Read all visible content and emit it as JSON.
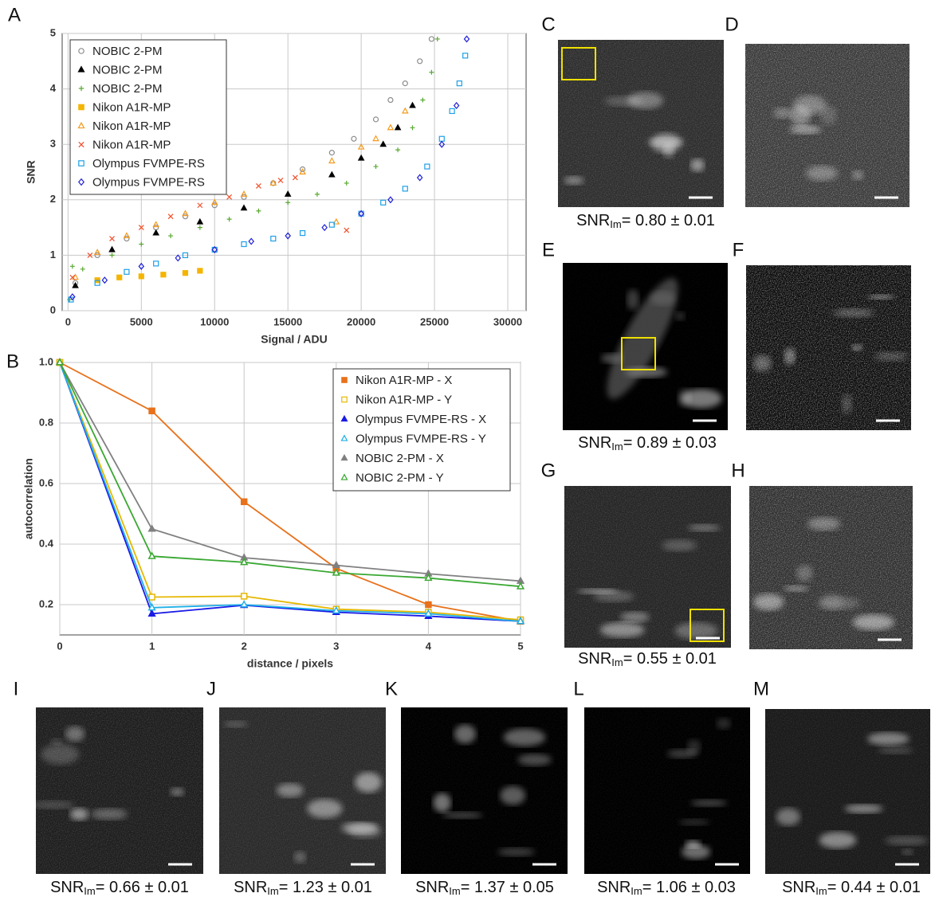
{
  "chart_data": [
    {
      "type": "scatter",
      "panel_label": "A",
      "xlabel": "Signal / ADU",
      "ylabel": "SNR",
      "xlim": [
        -400,
        31250
      ],
      "ylim": [
        0,
        5
      ],
      "xticks": [
        0,
        5000,
        10000,
        15000,
        20000,
        25000,
        30000
      ],
      "yticks": [
        0,
        1,
        2,
        3,
        4,
        5
      ],
      "grid": true,
      "legend": "upper left",
      "series": [
        {
          "name": "NOBIC 2-PM",
          "color": "#8c8c8c",
          "marker": "circle-open",
          "x": [
            500,
            2000,
            4000,
            6000,
            8000,
            10000,
            12000,
            14000,
            16000,
            18000,
            19500,
            21000,
            22000,
            23000,
            24000,
            24800
          ],
          "values": [
            0.5,
            1.0,
            1.3,
            1.5,
            1.7,
            1.9,
            2.05,
            2.3,
            2.55,
            2.85,
            3.1,
            3.45,
            3.8,
            4.1,
            4.5,
            4.9
          ]
        },
        {
          "name": "NOBIC 2-PM",
          "color": "#000000",
          "marker": "triangle-filled",
          "x": [
            500,
            3000,
            6000,
            9000,
            12000,
            15000,
            18000,
            20000,
            21500,
            22500,
            23500
          ],
          "values": [
            0.45,
            1.1,
            1.4,
            1.6,
            1.85,
            2.1,
            2.45,
            2.75,
            3.0,
            3.3,
            3.7
          ]
        },
        {
          "name": "NOBIC 2-PM",
          "color": "#5aa832",
          "marker": "plus",
          "x": [
            100,
            300,
            1000,
            3000,
            5000,
            7000,
            9000,
            11000,
            13000,
            15000,
            17000,
            19000,
            21000,
            22500,
            23500,
            24200,
            24800,
            25200
          ],
          "values": [
            0.2,
            0.8,
            0.75,
            1.0,
            1.2,
            1.35,
            1.5,
            1.65,
            1.8,
            1.95,
            2.1,
            2.3,
            2.6,
            2.9,
            3.3,
            3.8,
            4.3,
            4.9
          ]
        },
        {
          "name": "Nikon A1R-MP",
          "color": "#f5b400",
          "marker": "square-filled",
          "x": [
            2000,
            3500,
            5000,
            6500,
            8000,
            9000
          ],
          "values": [
            0.55,
            0.6,
            0.62,
            0.65,
            0.68,
            0.72
          ]
        },
        {
          "name": "Nikon A1R-MP",
          "color": "#f59a1c",
          "marker": "triangle-open",
          "x": [
            500,
            2000,
            4000,
            6000,
            8000,
            10000,
            12000,
            14000,
            16000,
            18000,
            18300,
            20000,
            21000,
            22000,
            23000
          ],
          "values": [
            0.6,
            1.05,
            1.35,
            1.55,
            1.75,
            1.95,
            2.1,
            2.3,
            2.5,
            2.7,
            1.6,
            2.95,
            3.1,
            3.3,
            3.6
          ]
        },
        {
          "name": "Nikon A1R-MP",
          "color": "#f0502a",
          "marker": "cross",
          "x": [
            300,
            1500,
            3000,
            5000,
            7000,
            9000,
            11000,
            13000,
            14500,
            15500,
            19000
          ],
          "values": [
            0.6,
            1.0,
            1.3,
            1.5,
            1.7,
            1.9,
            2.05,
            2.25,
            2.35,
            2.4,
            1.45
          ]
        },
        {
          "name": "Olympus FVMPE-RS",
          "color": "#1ea0e6",
          "marker": "square-open",
          "x": [
            200,
            2000,
            4000,
            6000,
            8000,
            10000,
            12000,
            14000,
            16000,
            18000,
            20000,
            21500,
            23000,
            24500,
            25500,
            26200,
            26700,
            27100
          ],
          "values": [
            0.2,
            0.5,
            0.7,
            0.85,
            1.0,
            1.1,
            1.2,
            1.3,
            1.4,
            1.55,
            1.75,
            1.95,
            2.2,
            2.6,
            3.1,
            3.6,
            4.1,
            4.6
          ]
        },
        {
          "name": "Olympus FVMPE-RS",
          "color": "#1f1fd6",
          "marker": "diamond-open",
          "x": [
            300,
            2500,
            5000,
            7500,
            10000,
            12500,
            15000,
            17500,
            20000,
            22000,
            24000,
            25500,
            26500,
            27200
          ],
          "values": [
            0.25,
            0.55,
            0.8,
            0.95,
            1.1,
            1.25,
            1.35,
            1.5,
            1.75,
            2.0,
            2.4,
            3.0,
            3.7,
            4.9
          ]
        }
      ]
    },
    {
      "type": "line",
      "panel_label": "B",
      "xlabel": "distance / pixels",
      "ylabel": "autocorrelation",
      "x": [
        0,
        1,
        2,
        3,
        4,
        5
      ],
      "xlim": [
        0,
        5
      ],
      "ylim": [
        0.1,
        1.0
      ],
      "xticks": [
        0,
        1,
        2,
        3,
        4,
        5
      ],
      "yticks": [
        {
          "value": 1,
          "label": "1.0"
        },
        0.8,
        0.6,
        0.4,
        0.2
      ],
      "grid": true,
      "legend": "upper right",
      "series": [
        {
          "name": "Nikon A1R-MP - X",
          "color": "#e8711a",
          "marker": "square-filled",
          "values": [
            1.0,
            0.84,
            0.54,
            0.32,
            0.2,
            0.145
          ]
        },
        {
          "name": "Nikon A1R-MP - Y",
          "color": "#e6b800",
          "marker": "square-open",
          "values": [
            1.0,
            0.225,
            0.228,
            0.185,
            0.175,
            0.15
          ]
        },
        {
          "name": "Olympus FVMPE-RS - X",
          "color": "#1a1ae6",
          "marker": "triangle-filled",
          "values": [
            1.0,
            0.17,
            0.198,
            0.175,
            0.162,
            0.145
          ]
        },
        {
          "name": "Olympus FVMPE-RS - Y",
          "color": "#20b0e8",
          "marker": "triangle-open",
          "values": [
            1.0,
            0.19,
            0.2,
            0.18,
            0.17,
            0.145
          ]
        },
        {
          "name": "NOBIC 2-PM - X",
          "color": "#808080",
          "marker": "triangle-filled",
          "values": [
            1.0,
            0.45,
            0.355,
            0.33,
            0.302,
            0.278
          ]
        },
        {
          "name": "NOBIC 2-PM - Y",
          "color": "#3aa832",
          "marker": "triangle-open",
          "values": [
            1.0,
            0.36,
            0.34,
            0.305,
            0.288,
            0.26
          ]
        }
      ]
    }
  ],
  "images": [
    {
      "label": "C",
      "caption": {
        "symbol": "SNR",
        "subscript": "Im",
        "text": "= 0.80 ± 0.01"
      }
    },
    {
      "label": "D"
    },
    {
      "label": "E",
      "caption": {
        "symbol": "SNR",
        "subscript": "Im",
        "text": "= 0.89 ± 0.03"
      }
    },
    {
      "label": "F"
    },
    {
      "label": "G",
      "caption": {
        "symbol": "SNR",
        "subscript": "Im",
        "text": "= 0.55 ± 0.01"
      }
    },
    {
      "label": "H"
    },
    {
      "label": "I",
      "caption": {
        "symbol": "SNR",
        "subscript": "Im",
        "text": "= 0.66 ± 0.01"
      }
    },
    {
      "label": "J",
      "caption": {
        "symbol": "SNR",
        "subscript": "Im",
        "text": "= 1.23 ± 0.01"
      }
    },
    {
      "label": "K",
      "caption": {
        "symbol": "SNR",
        "subscript": "Im",
        "text": "= 1.37 ± 0.05"
      }
    },
    {
      "label": "L",
      "caption": {
        "symbol": "SNR",
        "subscript": "Im",
        "text": "= 1.06 ± 0.03"
      }
    },
    {
      "label": "M",
      "caption": {
        "symbol": "SNR",
        "subscript": "Im",
        "text": "= 0.44 ± 0.01"
      }
    }
  ]
}
